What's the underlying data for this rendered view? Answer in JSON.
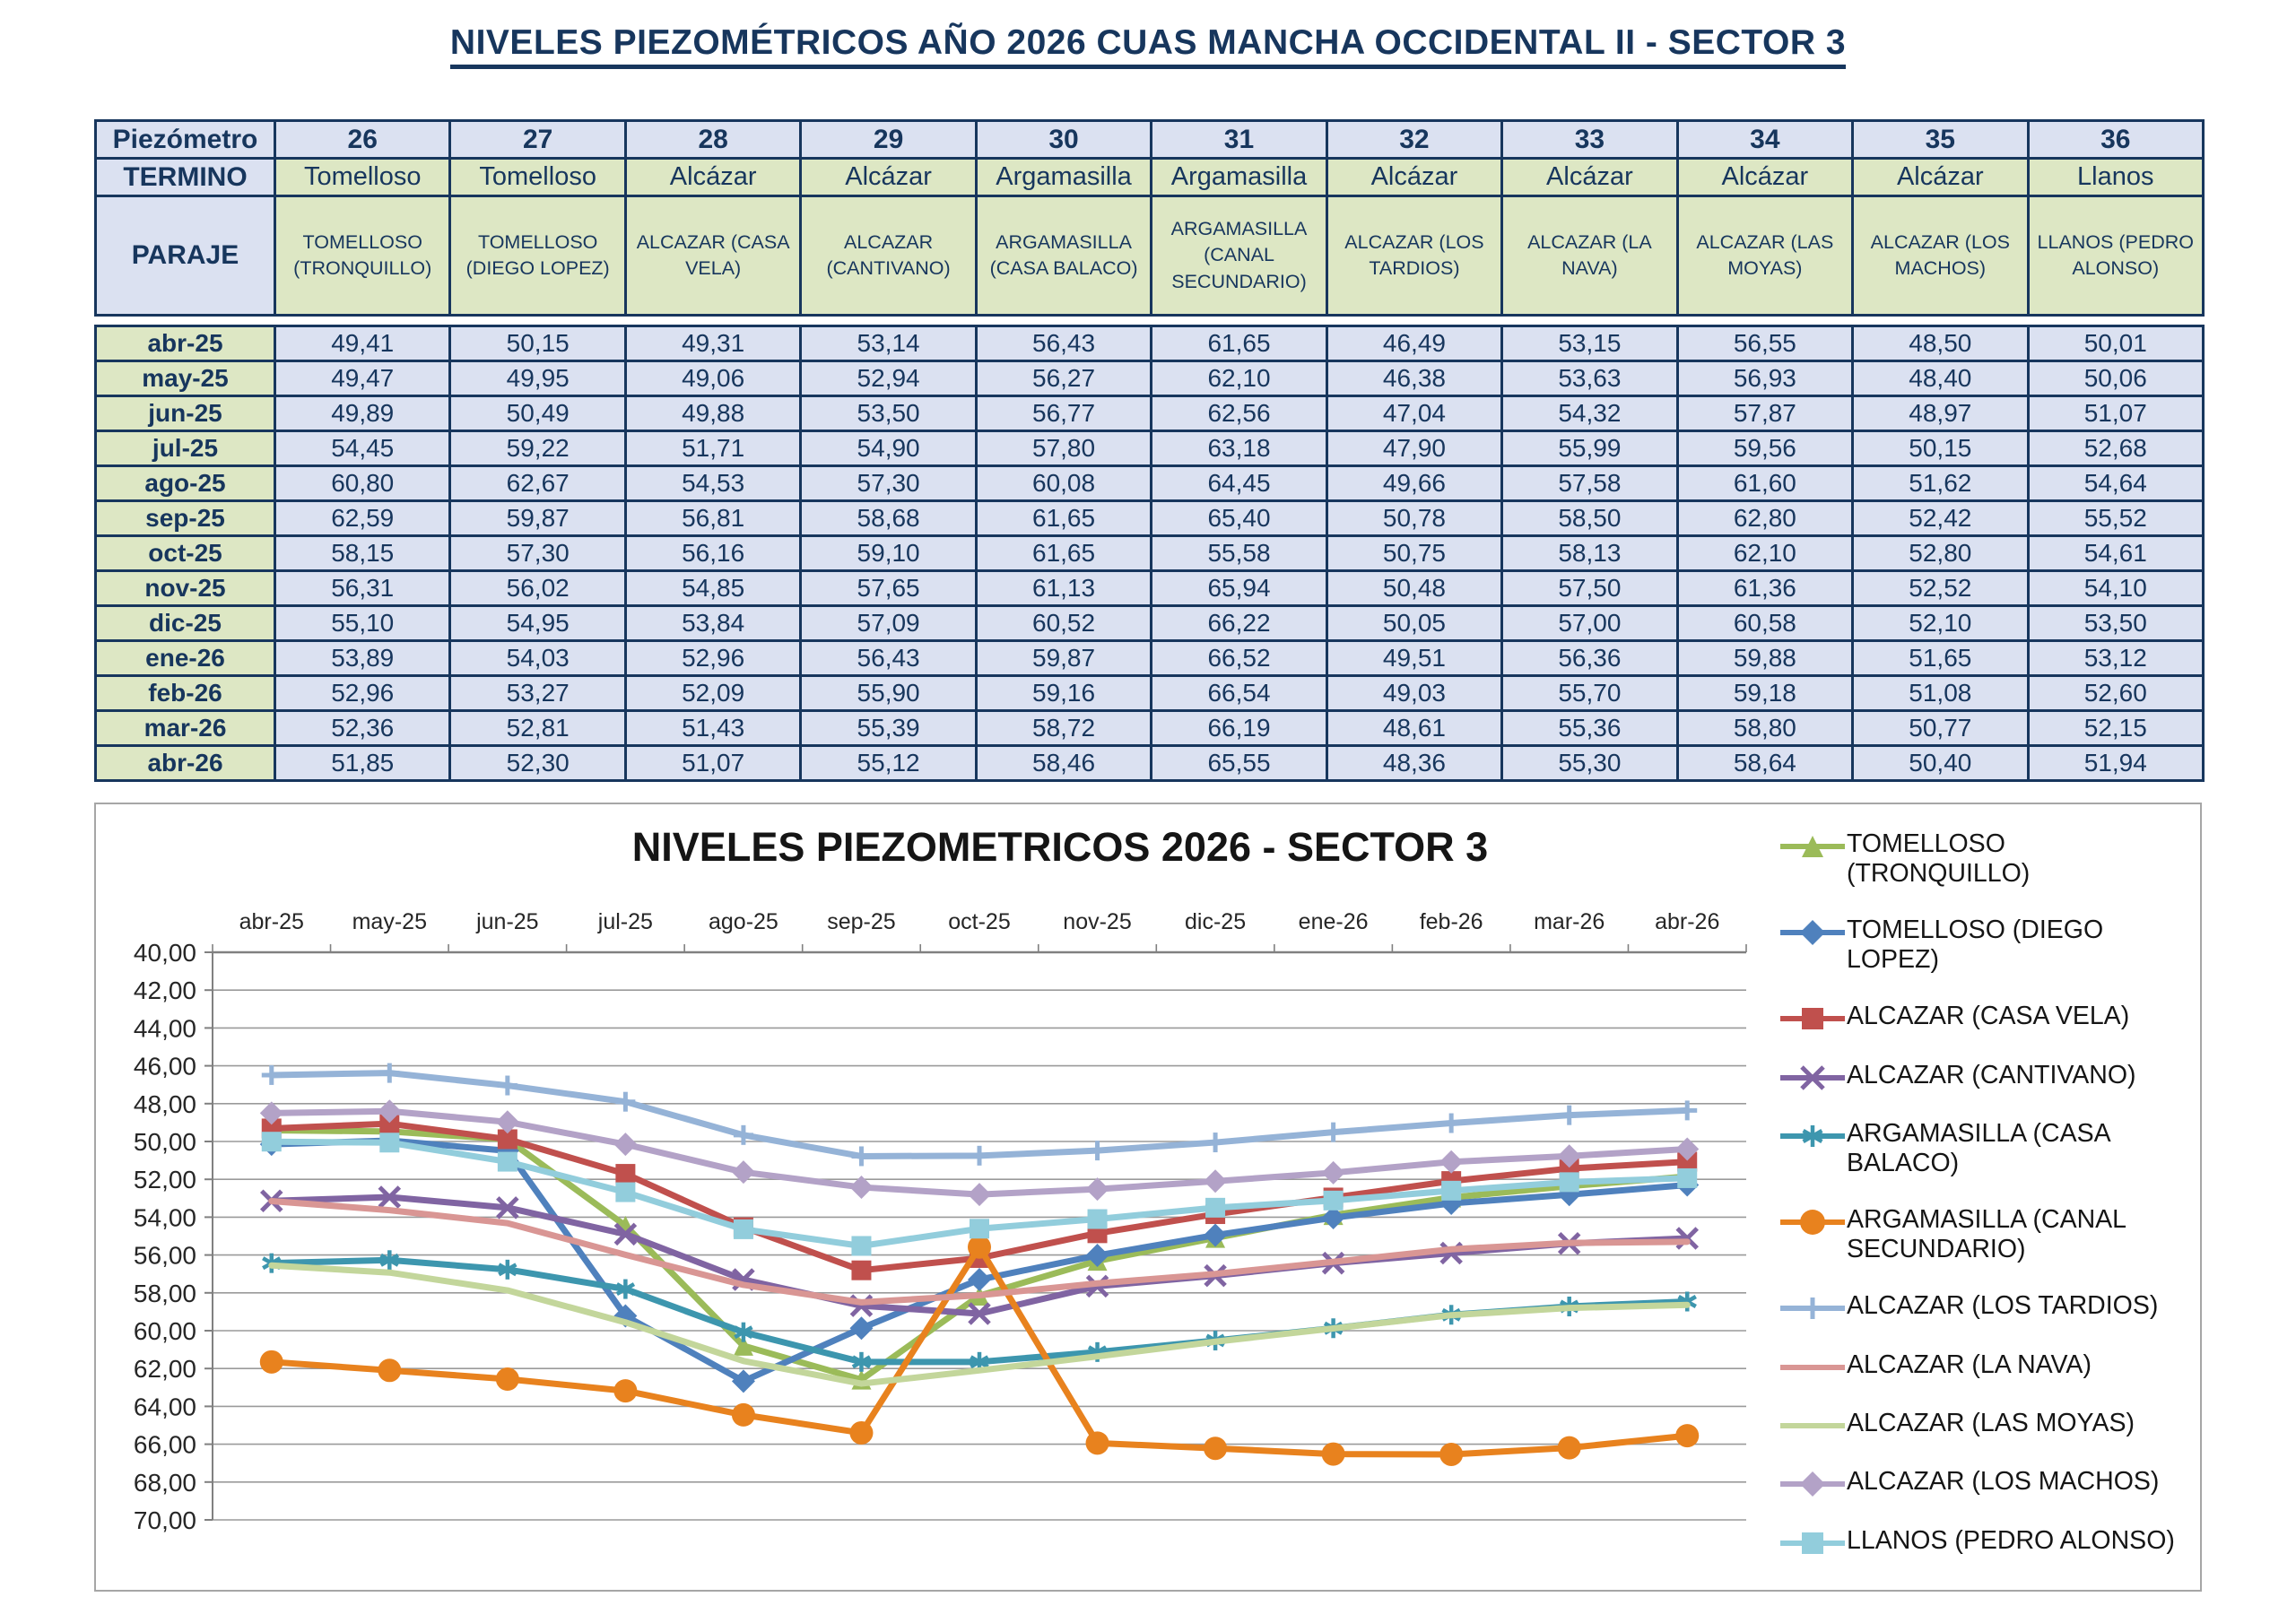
{
  "page_title": "NIVELES PIEZOMÉTRICOS AÑO 2026 CUAS MANCHA OCCIDENTAL II - SECTOR 3",
  "table": {
    "corner_label": "Piezómetro",
    "termino_label": "TERMINO",
    "paraje_label": "PARAJE",
    "columns": [
      {
        "num": "26",
        "termino": "Tomelloso",
        "paraje": "TOMELLOSO (TRONQUILLO)"
      },
      {
        "num": "27",
        "termino": "Tomelloso",
        "paraje": "TOMELLOSO (DIEGO LOPEZ)"
      },
      {
        "num": "28",
        "termino": "Alcázar",
        "paraje": "ALCAZAR (CASA VELA)"
      },
      {
        "num": "29",
        "termino": "Alcázar",
        "paraje": "ALCAZAR (CANTIVANO)"
      },
      {
        "num": "30",
        "termino": "Argamasilla",
        "paraje": "ARGAMASILLA (CASA BALACO)"
      },
      {
        "num": "31",
        "termino": "Argamasilla",
        "paraje": "ARGAMASILLA (CANAL SECUNDARIO)"
      },
      {
        "num": "32",
        "termino": "Alcázar",
        "paraje": "ALCAZAR (LOS TARDIOS)"
      },
      {
        "num": "33",
        "termino": "Alcázar",
        "paraje": "ALCAZAR (LA NAVA)"
      },
      {
        "num": "34",
        "termino": "Alcázar",
        "paraje": "ALCAZAR (LAS MOYAS)"
      },
      {
        "num": "35",
        "termino": "Alcázar",
        "paraje": "ALCAZAR (LOS MACHOS)"
      },
      {
        "num": "36",
        "termino": "Llanos",
        "paraje": "LLANOS (PEDRO ALONSO)"
      }
    ],
    "rows": [
      {
        "month": "abr-25",
        "values": [
          "49,41",
          "50,15",
          "49,31",
          "53,14",
          "56,43",
          "61,65",
          "46,49",
          "53,15",
          "56,55",
          "48,50",
          "50,01"
        ]
      },
      {
        "month": "may-25",
        "values": [
          "49,47",
          "49,95",
          "49,06",
          "52,94",
          "56,27",
          "62,10",
          "46,38",
          "53,63",
          "56,93",
          "48,40",
          "50,06"
        ]
      },
      {
        "month": "jun-25",
        "values": [
          "49,89",
          "50,49",
          "49,88",
          "53,50",
          "56,77",
          "62,56",
          "47,04",
          "54,32",
          "57,87",
          "48,97",
          "51,07"
        ]
      },
      {
        "month": "jul-25",
        "values": [
          "54,45",
          "59,22",
          "51,71",
          "54,90",
          "57,80",
          "63,18",
          "47,90",
          "55,99",
          "59,56",
          "50,15",
          "52,68"
        ]
      },
      {
        "month": "ago-25",
        "values": [
          "60,80",
          "62,67",
          "54,53",
          "57,30",
          "60,08",
          "64,45",
          "49,66",
          "57,58",
          "61,60",
          "51,62",
          "54,64"
        ]
      },
      {
        "month": "sep-25",
        "values": [
          "62,59",
          "59,87",
          "56,81",
          "58,68",
          "61,65",
          "65,40",
          "50,78",
          "58,50",
          "62,80",
          "52,42",
          "55,52"
        ]
      },
      {
        "month": "oct-25",
        "values": [
          "58,15",
          "57,30",
          "56,16",
          "59,10",
          "61,65",
          "55,58",
          "50,75",
          "58,13",
          "62,10",
          "52,80",
          "54,61"
        ]
      },
      {
        "month": "nov-25",
        "values": [
          "56,31",
          "56,02",
          "54,85",
          "57,65",
          "61,13",
          "65,94",
          "50,48",
          "57,50",
          "61,36",
          "52,52",
          "54,10"
        ]
      },
      {
        "month": "dic-25",
        "values": [
          "55,10",
          "54,95",
          "53,84",
          "57,09",
          "60,52",
          "66,22",
          "50,05",
          "57,00",
          "60,58",
          "52,10",
          "53,50"
        ]
      },
      {
        "month": "ene-26",
        "values": [
          "53,89",
          "54,03",
          "52,96",
          "56,43",
          "59,87",
          "66,52",
          "49,51",
          "56,36",
          "59,88",
          "51,65",
          "53,12"
        ]
      },
      {
        "month": "feb-26",
        "values": [
          "52,96",
          "53,27",
          "52,09",
          "55,90",
          "59,16",
          "66,54",
          "49,03",
          "55,70",
          "59,18",
          "51,08",
          "52,60"
        ]
      },
      {
        "month": "mar-26",
        "values": [
          "52,36",
          "52,81",
          "51,43",
          "55,39",
          "58,72",
          "66,19",
          "48,61",
          "55,36",
          "58,80",
          "50,77",
          "52,15"
        ]
      },
      {
        "month": "abr-26",
        "values": [
          "51,85",
          "52,30",
          "51,07",
          "55,12",
          "58,46",
          "65,55",
          "48,36",
          "55,30",
          "58,64",
          "50,40",
          "51,94"
        ]
      }
    ]
  },
  "chart_data": {
    "type": "line",
    "title": "NIVELES PIEZOMETRICOS 2026 - SECTOR 3",
    "categories": [
      "abr-25",
      "may-25",
      "jun-25",
      "jul-25",
      "ago-25",
      "sep-25",
      "oct-25",
      "nov-25",
      "dic-25",
      "ene-26",
      "feb-26",
      "mar-26",
      "abr-26"
    ],
    "y_axis": {
      "min": 40,
      "max": 70,
      "step": 2,
      "inverted": true,
      "decimal_separator": ","
    },
    "x_axis_position": "top",
    "grid": true,
    "legend_position": "right",
    "series": [
      {
        "name": "TOMELLOSO (TRONQUILLO)",
        "color": "#9BBB59",
        "marker": "triangle",
        "values": [
          49.41,
          49.47,
          49.89,
          54.45,
          60.8,
          62.59,
          58.15,
          56.31,
          55.1,
          53.89,
          52.96,
          52.36,
          51.85
        ]
      },
      {
        "name": "TOMELLOSO (DIEGO LOPEZ)",
        "color": "#4F81BD",
        "marker": "diamond",
        "values": [
          50.15,
          49.95,
          50.49,
          59.22,
          62.67,
          59.87,
          57.3,
          56.02,
          54.95,
          54.03,
          53.27,
          52.81,
          52.3
        ]
      },
      {
        "name": "ALCAZAR (CASA VELA)",
        "color": "#C0504D",
        "marker": "square",
        "values": [
          49.31,
          49.06,
          49.88,
          51.71,
          54.53,
          56.81,
          56.16,
          54.85,
          53.84,
          52.96,
          52.09,
          51.43,
          51.07
        ]
      },
      {
        "name": "ALCAZAR (CANTIVANO)",
        "color": "#8064A2",
        "marker": "x",
        "values": [
          53.14,
          52.94,
          53.5,
          54.9,
          57.3,
          58.68,
          59.1,
          57.65,
          57.09,
          56.43,
          55.9,
          55.39,
          55.12
        ]
      },
      {
        "name": "ARGAMASILLA (CASA BALACO)",
        "color": "#3D96AE",
        "marker": "asterisk",
        "values": [
          56.43,
          56.27,
          56.77,
          57.8,
          60.08,
          61.65,
          61.65,
          61.13,
          60.52,
          59.87,
          59.16,
          58.72,
          58.46
        ]
      },
      {
        "name": "ARGAMASILLA (CANAL SECUNDARIO)",
        "color": "#E8821E",
        "marker": "circle",
        "values": [
          61.65,
          62.1,
          62.56,
          63.18,
          64.45,
          65.4,
          55.58,
          65.94,
          66.22,
          66.52,
          66.54,
          66.19,
          65.55
        ]
      },
      {
        "name": "ALCAZAR (LOS TARDIOS)",
        "color": "#95B3D7",
        "marker": "plus",
        "values": [
          46.49,
          46.38,
          47.04,
          47.9,
          49.66,
          50.78,
          50.75,
          50.48,
          50.05,
          49.51,
          49.03,
          48.61,
          48.36
        ]
      },
      {
        "name": "ALCAZAR (LA NAVA)",
        "color": "#D99694",
        "marker": "none",
        "values": [
          53.15,
          53.63,
          54.32,
          55.99,
          57.58,
          58.5,
          58.13,
          57.5,
          57.0,
          56.36,
          55.7,
          55.36,
          55.3
        ]
      },
      {
        "name": "ALCAZAR (LAS MOYAS)",
        "color": "#C3D69B",
        "marker": "none",
        "values": [
          56.55,
          56.93,
          57.87,
          59.56,
          61.6,
          62.8,
          62.1,
          61.36,
          60.58,
          59.88,
          59.18,
          58.8,
          58.64
        ]
      },
      {
        "name": "ALCAZAR (LOS MACHOS)",
        "color": "#B3A2C7",
        "marker": "diamond",
        "values": [
          48.5,
          48.4,
          48.97,
          50.15,
          51.62,
          52.42,
          52.8,
          52.52,
          52.1,
          51.65,
          51.08,
          50.77,
          50.4
        ]
      },
      {
        "name": "LLANOS (PEDRO ALONSO)",
        "color": "#92CDDC",
        "marker": "square",
        "values": [
          50.01,
          50.06,
          51.07,
          52.68,
          54.64,
          55.52,
          54.61,
          54.1,
          53.5,
          53.12,
          52.6,
          52.15,
          51.94
        ]
      }
    ],
    "style": {
      "gridline_color": "#9A9A9A",
      "axis_color": "#808080",
      "line_width": 7
    }
  }
}
